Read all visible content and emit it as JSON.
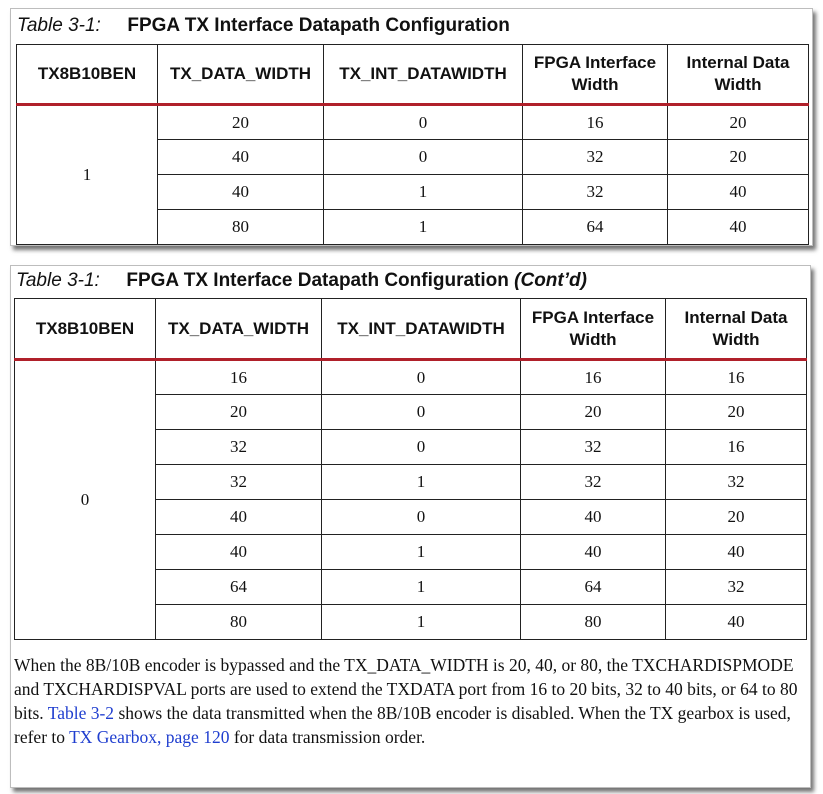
{
  "table1": {
    "caption_number": "Table 3-1:",
    "caption_title": "FPGA TX Interface Datapath Configuration",
    "caption_cont": "",
    "headers": [
      "TX8B10BEN",
      "TX_DATA_WIDTH",
      "TX_INT_DATAWIDTH",
      "FPGA Interface Width",
      "Internal Data Width"
    ],
    "tx8b10ben": "1",
    "rows": [
      [
        "20",
        "0",
        "16",
        "20"
      ],
      [
        "40",
        "0",
        "32",
        "20"
      ],
      [
        "40",
        "1",
        "32",
        "40"
      ],
      [
        "80",
        "1",
        "64",
        "40"
      ]
    ]
  },
  "table2": {
    "caption_number": "Table 3-1:",
    "caption_title": "FPGA TX Interface Datapath Configuration",
    "caption_cont": "(Cont’d)",
    "headers": [
      "TX8B10BEN",
      "TX_DATA_WIDTH",
      "TX_INT_DATAWIDTH",
      "FPGA Interface Width",
      "Internal Data Width"
    ],
    "tx8b10ben": "0",
    "rows": [
      [
        "16",
        "0",
        "16",
        "16"
      ],
      [
        "20",
        "0",
        "20",
        "20"
      ],
      [
        "32",
        "0",
        "32",
        "16"
      ],
      [
        "32",
        "1",
        "32",
        "32"
      ],
      [
        "40",
        "0",
        "40",
        "20"
      ],
      [
        "40",
        "1",
        "40",
        "40"
      ],
      [
        "64",
        "1",
        "64",
        "32"
      ],
      [
        "80",
        "1",
        "80",
        "40"
      ]
    ]
  },
  "paragraph": {
    "text_before_link1": "When the 8B/10B encoder is bypassed and the TX_DATA_WIDTH is 20, 40, or 80, the TXCHARDISPMODE and TXCHARDISPVAL ports are used to extend the TXDATA port from 16 to 20 bits, 32 to 40 bits, or 64 to 80 bits.",
    "link1": "Table 3-2",
    "text_between_links": "shows the data transmitted when the 8B/10B encoder is disabled. When the TX gearbox is used, refer to",
    "link2": "TX Gearbox, page 120",
    "text_after_link2": "for data transmission order."
  },
  "colors": {
    "header_rule": "#b0202a",
    "link": "#1f3ecf"
  }
}
